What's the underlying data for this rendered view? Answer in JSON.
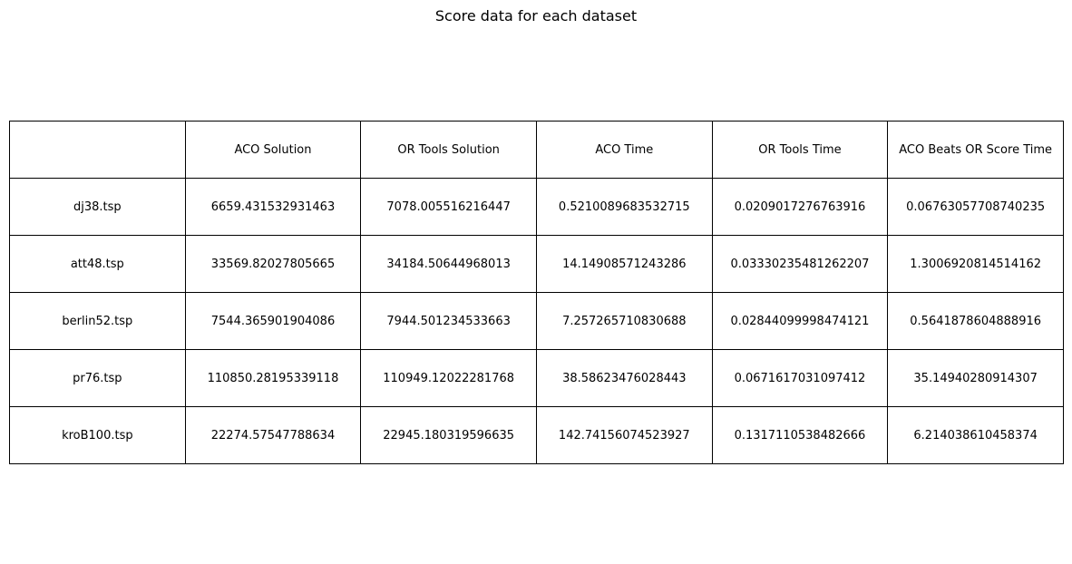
{
  "chart_data": {
    "type": "table",
    "title": "Score data for each dataset",
    "columns": [
      "",
      "ACO Solution",
      "OR Tools Solution",
      "ACO Time",
      "OR Tools Time",
      "ACO Beats OR Score Time"
    ],
    "rows": [
      [
        "dj38.tsp",
        "6659.431532931463",
        "7078.005516216447",
        "0.5210089683532715",
        "0.0209017276763916",
        "0.06763057708740235"
      ],
      [
        "att48.tsp",
        "33569.82027805665",
        "34184.50644968013",
        "14.14908571243286",
        "0.03330235481262207",
        "1.3006920814514162"
      ],
      [
        "berlin52.tsp",
        "7544.365901904086",
        "7944.501234533663",
        "7.257265710830688",
        "0.02844099998474121",
        "0.5641878604888916"
      ],
      [
        "pr76.tsp",
        "110850.28195339118",
        "110949.12022281768",
        "38.58623476028443",
        "0.0671617031097412",
        "35.14940280914307"
      ],
      [
        "kroB100.tsp",
        "22274.57547788634",
        "22945.180319596635",
        "142.74156074523927",
        "0.1317110538482666",
        "6.214038610458374"
      ]
    ]
  }
}
